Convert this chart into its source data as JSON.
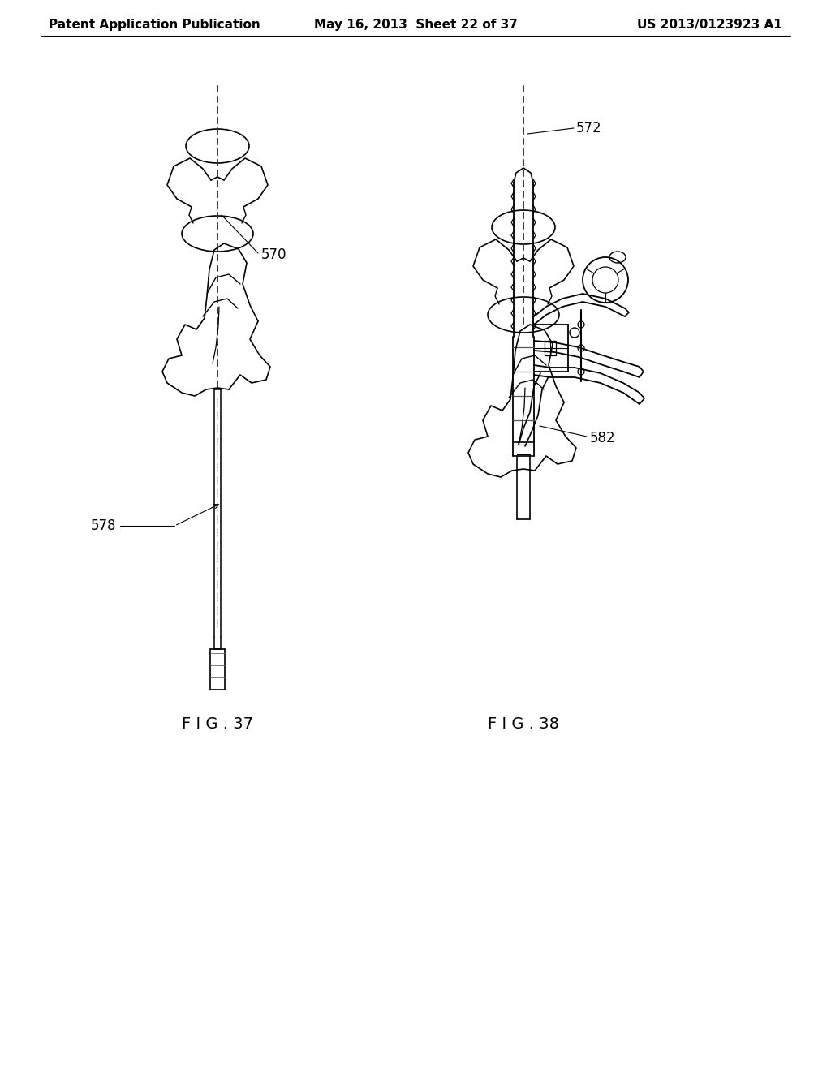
{
  "bg_color": "#ffffff",
  "line_color": "#000000",
  "header_left": "Patent Application Publication",
  "header_center": "May 16, 2013  Sheet 22 of 37",
  "header_right": "US 2013/0123923 A1",
  "fig37_label": "F I G . 37",
  "fig38_label": "F I G . 38",
  "label_570": "570",
  "label_578": "578",
  "label_572": "572",
  "label_582": "582",
  "header_fontsize": 11,
  "label_fontsize": 12,
  "fig_label_fontsize": 14
}
